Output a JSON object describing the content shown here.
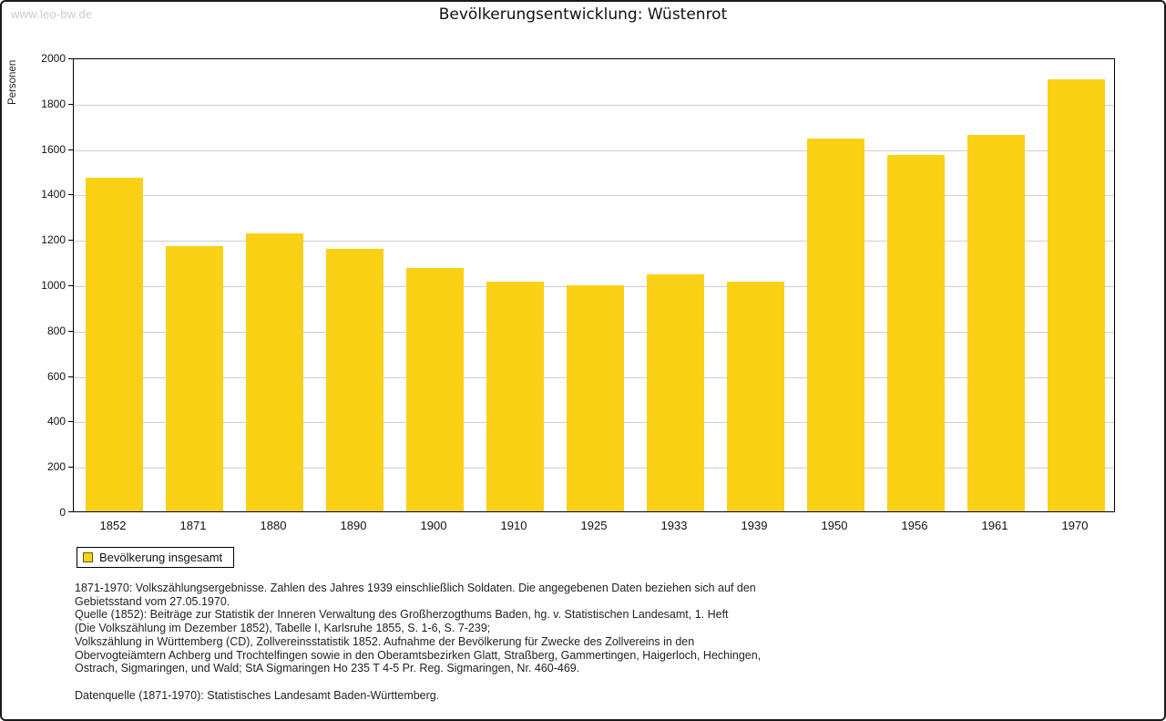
{
  "watermark": "www.leo-bw.de",
  "title": "Bevölkerungsentwicklung: Wüstenrot",
  "chart_data": {
    "type": "bar",
    "title": "Bevölkerungsentwicklung: Wüstenrot",
    "categories": [
      "1852",
      "1871",
      "1880",
      "1890",
      "1900",
      "1910",
      "1925",
      "1933",
      "1939",
      "1950",
      "1956",
      "1961",
      "1970"
    ],
    "values": [
      1475,
      1175,
      1230,
      1160,
      1075,
      1015,
      1000,
      1050,
      1015,
      1650,
      1575,
      1665,
      1910
    ],
    "xlabel": "",
    "ylabel": "Personen",
    "ylim": [
      0,
      2000
    ],
    "ytick_step": 200,
    "grid": true,
    "bar_color": "#FBD116",
    "legend_position": "bottom-left"
  },
  "legend": {
    "label": "Bevölkerung insgesamt"
  },
  "footnotes": {
    "lines": [
      "1871-1970: Volkszählungsergebnisse. Zahlen des Jahres 1939 einschließlich Soldaten. Die angegebenen Daten beziehen sich auf den",
      "Gebietsstand vom 27.05.1970.",
      "Quelle (1852): Beiträge zur Statistik der Inneren Verwaltung des Großherzogthums Baden, hg. v. Statistischen Landesamt, 1. Heft",
      "(Die Volkszählung im Dezember 1852), Tabelle I, Karlsruhe 1855, S. 1-6, S. 7-239;",
      "Volkszählung in Württemberg (CD), Zollvereinsstatistik 1852. Aufnahme der Bevölkerung für Zwecke des Zollvereins in den",
      "Obervogteiämtern Achberg und Trochtelfingen sowie in den Oberamtsbezirken Glatt, Straßberg, Gammertingen, Haigerloch, Hechingen,",
      "Ostrach, Sigmaringen, und Wald; StA Sigmaringen Ho 235 T 4-5 Pr. Reg. Sigmaringen, Nr. 460-469.",
      "",
      "Datenquelle (1871-1970): Statistisches Landesamt Baden-Württemberg."
    ]
  }
}
